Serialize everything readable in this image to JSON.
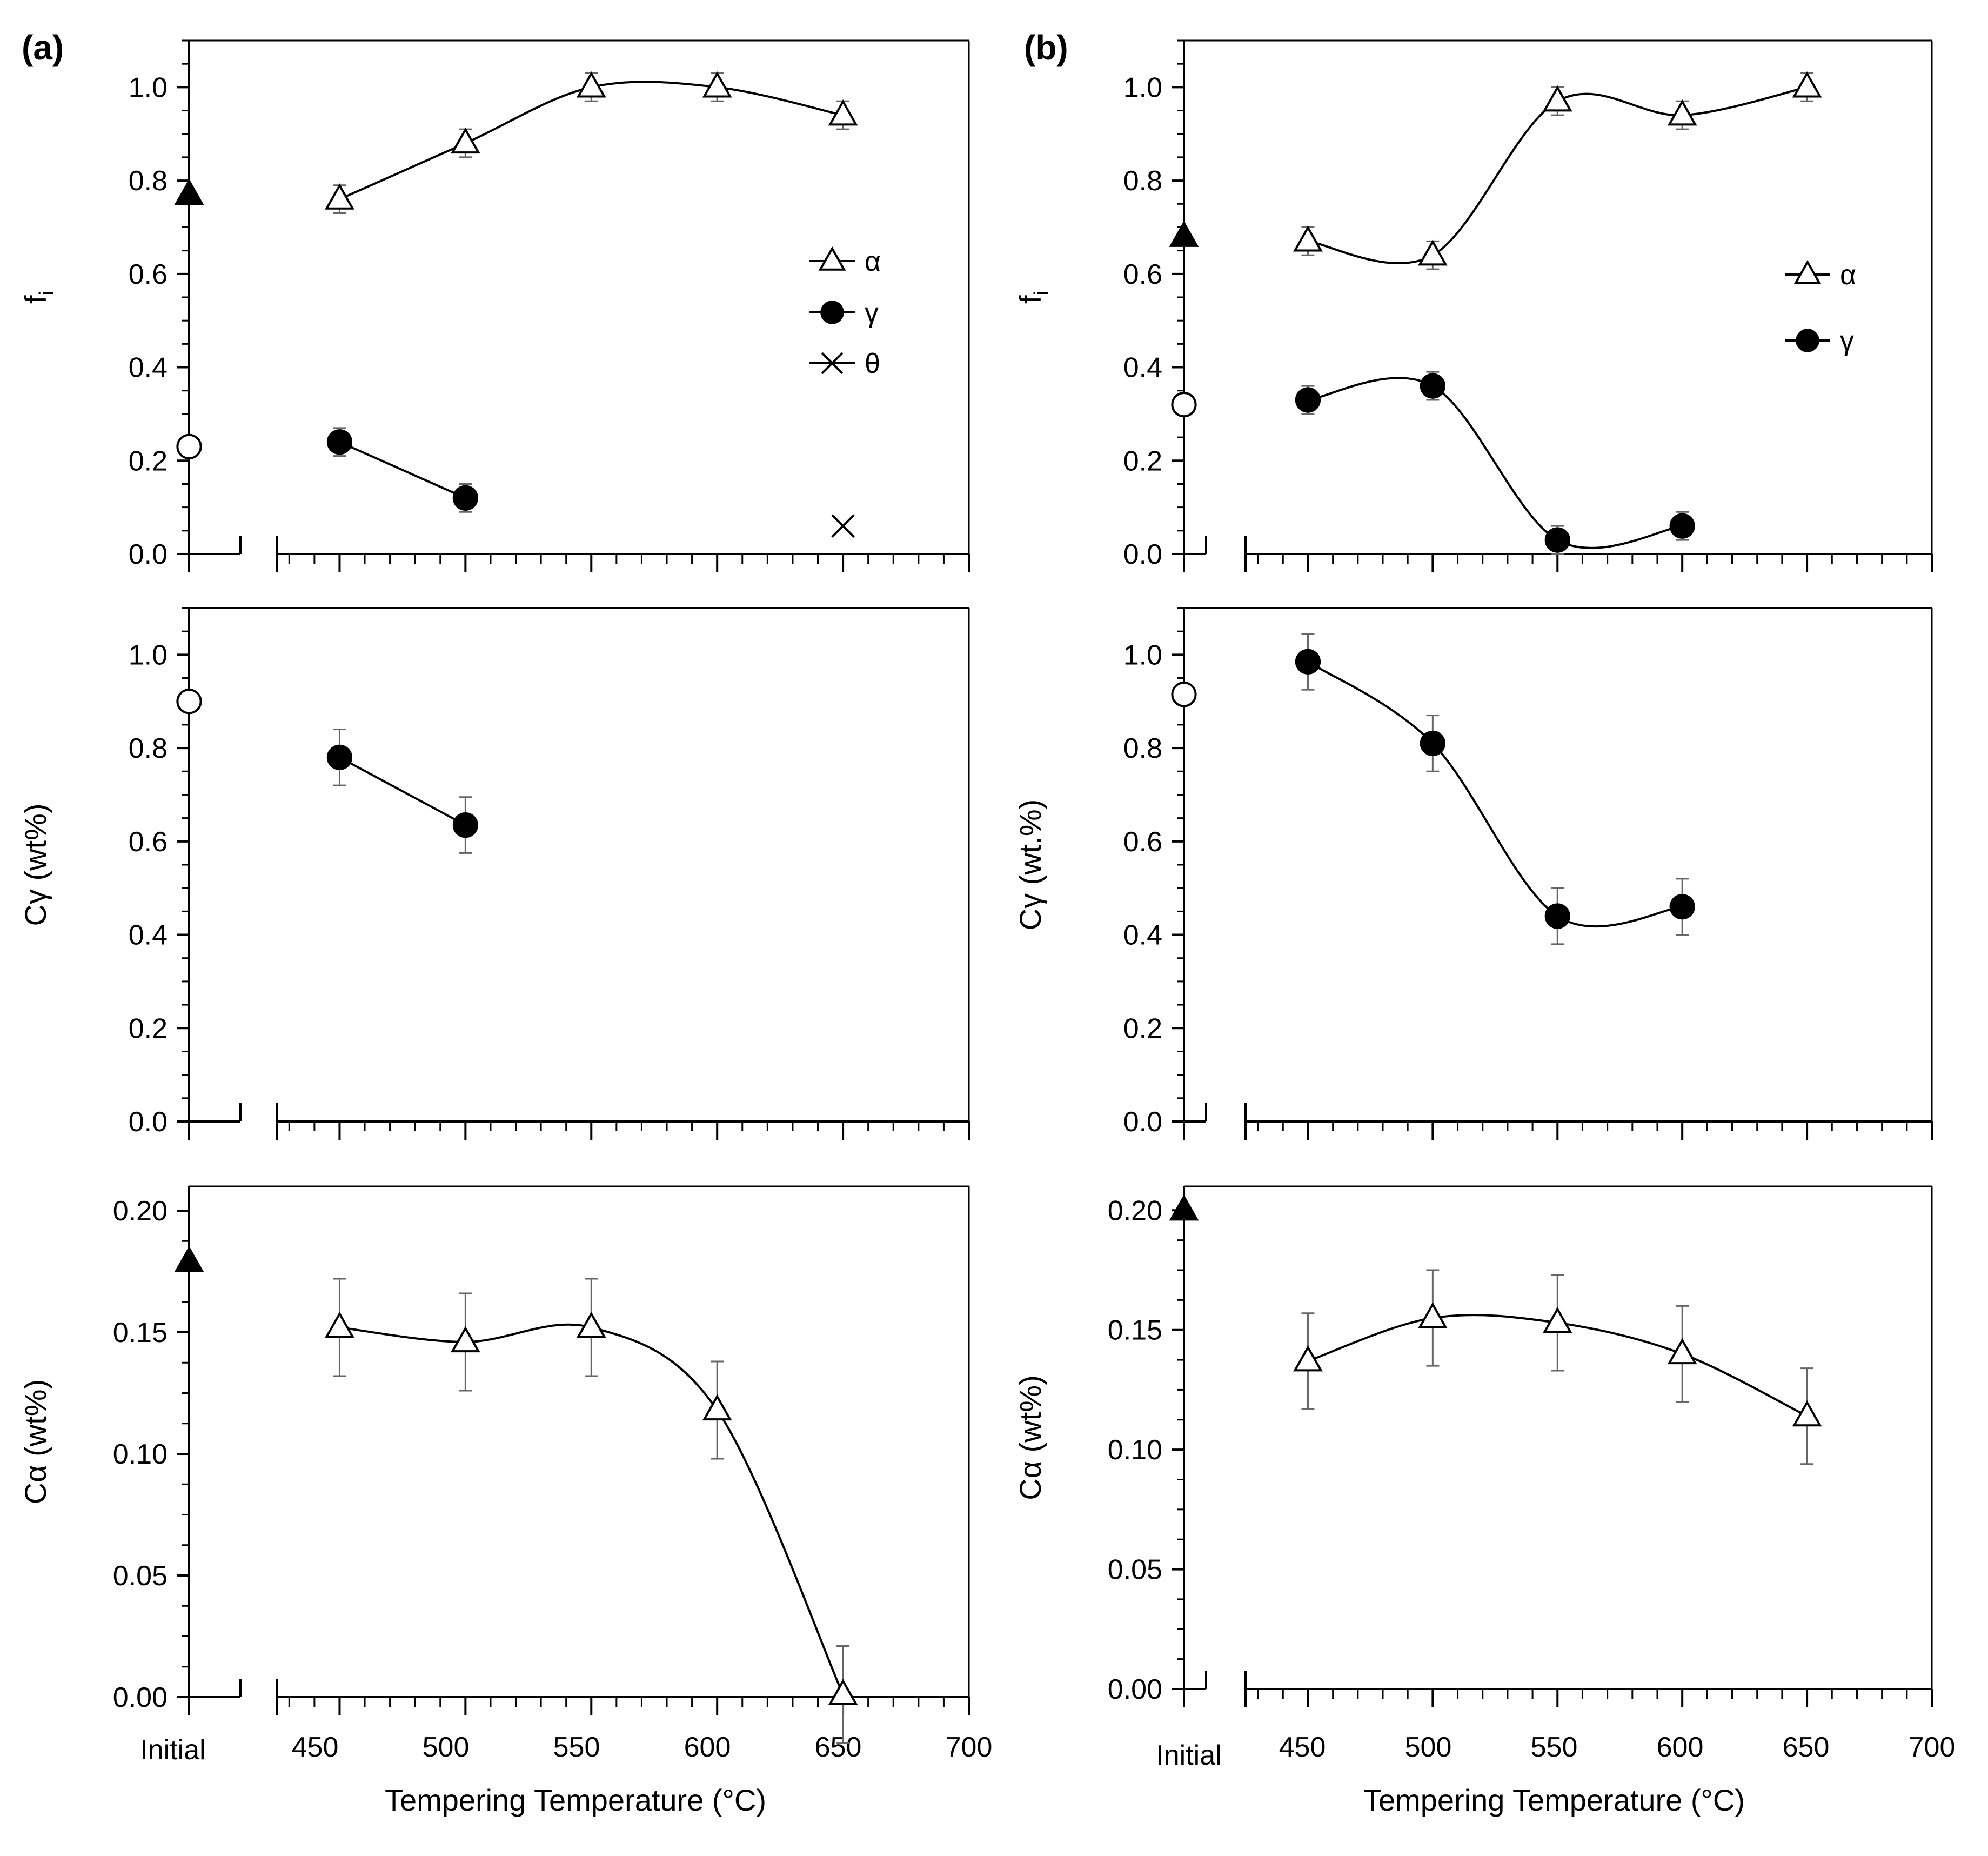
{
  "figure": {
    "xlabel": "Tempering Temperature (°C)",
    "initial_label": "Initial",
    "x_tick_labels": [
      "450",
      "500",
      "550",
      "600",
      "650",
      "700"
    ],
    "panel_labels": [
      "(a)",
      "(b)"
    ]
  },
  "chart_data": [
    {
      "id": "a-fi",
      "column": "a",
      "row": 0,
      "type": "line",
      "ylabel": "f",
      "ylabel_sub": "i",
      "ylim": [
        0,
        1.1
      ],
      "yticks": [
        "0.0",
        "0.2",
        "0.4",
        "0.6",
        "0.8",
        "1.0"
      ],
      "xlim": [
        425,
        700
      ],
      "grid": false,
      "legend_position": "right",
      "series": [
        {
          "name": "α",
          "marker": "open-triangle",
          "curve": "smooth",
          "x": [
            450,
            500,
            550,
            600,
            650
          ],
          "values": [
            0.76,
            0.88,
            1.0,
            1.0,
            0.94
          ],
          "err": [
            0.03,
            0.03,
            0.03,
            0.03,
            0.03
          ],
          "initial": 0.77,
          "initial_marker": "filled-triangle"
        },
        {
          "name": "γ",
          "marker": "filled-circle",
          "curve": "straight",
          "x": [
            450,
            500
          ],
          "values": [
            0.24,
            0.12
          ],
          "err": [
            0.03,
            0.03
          ],
          "initial": 0.23,
          "initial_marker": "open-circle"
        },
        {
          "name": "θ",
          "marker": "cross",
          "curve": "none",
          "x": [
            650
          ],
          "values": [
            0.06
          ],
          "err": [
            null
          ]
        }
      ]
    },
    {
      "id": "a-cgamma",
      "column": "a",
      "row": 1,
      "type": "line",
      "ylabel": "Cγ (wt%)",
      "ylim": [
        0,
        1.1
      ],
      "yticks": [
        "0.0",
        "0.2",
        "0.4",
        "0.6",
        "0.8",
        "1.0"
      ],
      "xlim": [
        425,
        700
      ],
      "grid": false,
      "series": [
        {
          "name": "γ",
          "marker": "filled-circle",
          "curve": "straight",
          "x": [
            450,
            500
          ],
          "values": [
            0.78,
            0.635
          ],
          "err": [
            0.06,
            0.06
          ],
          "initial": 0.9,
          "initial_marker": "open-circle"
        }
      ]
    },
    {
      "id": "a-calpha",
      "column": "a",
      "row": 2,
      "type": "line",
      "ylabel": "Cα (wt%)",
      "ylim": [
        0,
        0.21
      ],
      "yticks": [
        "0.00",
        "0.05",
        "0.10",
        "0.15",
        "0.20"
      ],
      "xlim": [
        425,
        700
      ],
      "grid": false,
      "series": [
        {
          "name": "α",
          "marker": "open-triangle",
          "curve": "smooth",
          "x": [
            450,
            500,
            550,
            600,
            650
          ],
          "values": [
            0.152,
            0.146,
            0.152,
            0.118,
            0.001
          ],
          "err": [
            0.02,
            0.02,
            0.02,
            0.02,
            0.02
          ],
          "initial": 0.179,
          "initial_marker": "filled-triangle"
        }
      ]
    },
    {
      "id": "b-fi",
      "column": "b",
      "row": 0,
      "type": "line",
      "ylabel": "f",
      "ylabel_sub": "i",
      "ylim": [
        0,
        1.1
      ],
      "yticks": [
        "0.0",
        "0.2",
        "0.4",
        "0.6",
        "0.8",
        "1.0"
      ],
      "xlim": [
        425,
        700
      ],
      "grid": false,
      "legend_position": "right",
      "series": [
        {
          "name": "α",
          "marker": "open-triangle",
          "curve": "smooth",
          "x": [
            450,
            500,
            550,
            600,
            650
          ],
          "values": [
            0.67,
            0.64,
            0.97,
            0.94,
            1.0
          ],
          "err": [
            0.03,
            0.03,
            0.03,
            0.03,
            0.03
          ],
          "initial": 0.68,
          "initial_marker": "filled-triangle"
        },
        {
          "name": "γ",
          "marker": "filled-circle",
          "curve": "smooth",
          "x": [
            450,
            500,
            550,
            600
          ],
          "values": [
            0.33,
            0.36,
            0.03,
            0.06
          ],
          "err": [
            0.03,
            0.03,
            0.03,
            0.03
          ],
          "initial": 0.32,
          "initial_marker": "open-circle"
        }
      ]
    },
    {
      "id": "b-cgamma",
      "column": "b",
      "row": 1,
      "type": "line",
      "ylabel": "Cγ (wt.%)",
      "ylim": [
        0,
        1.1
      ],
      "yticks": [
        "0.0",
        "0.2",
        "0.4",
        "0.6",
        "0.8",
        "1.0"
      ],
      "xlim": [
        425,
        700
      ],
      "grid": false,
      "series": [
        {
          "name": "γ",
          "marker": "filled-circle",
          "curve": "smooth",
          "x": [
            450,
            500,
            550,
            600
          ],
          "values": [
            0.985,
            0.81,
            0.44,
            0.46
          ],
          "err": [
            0.06,
            0.06,
            0.06,
            0.06
          ],
          "initial": 0.915,
          "initial_marker": "open-circle"
        }
      ]
    },
    {
      "id": "b-calpha",
      "column": "b",
      "row": 2,
      "type": "line",
      "ylabel": "Cα (wt%)",
      "ylim": [
        0,
        0.21
      ],
      "yticks": [
        "0.00",
        "0.05",
        "0.10",
        "0.15",
        "0.20"
      ],
      "xlim": [
        425,
        700
      ],
      "grid": false,
      "series": [
        {
          "name": "α",
          "marker": "open-triangle",
          "curve": "smooth",
          "x": [
            450,
            500,
            550,
            600,
            650
          ],
          "values": [
            0.137,
            0.155,
            0.153,
            0.14,
            0.114
          ],
          "err": [
            0.02,
            0.02,
            0.02,
            0.02,
            0.02
          ],
          "initial": 0.2,
          "initial_marker": "filled-triangle"
        }
      ]
    }
  ]
}
